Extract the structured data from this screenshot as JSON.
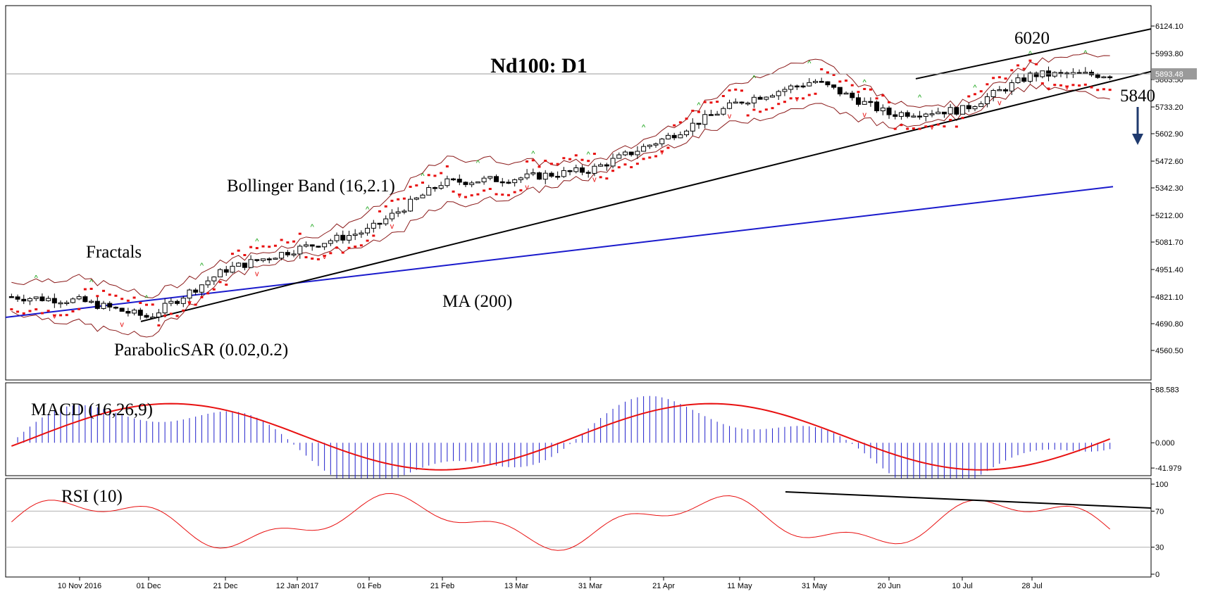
{
  "chart_data": {
    "type": "candlestick",
    "title": "Nd100: D1",
    "symbol_label": "Nd100: D1",
    "annotations": {
      "fractals": "Fractals",
      "bollinger": "Bollinger Band (16,2.1)",
      "parabolic": "ParabolicSAR (0.02,0.2)",
      "ma": "MA (200)",
      "target_up": "6020",
      "target_down": "5840"
    },
    "price_axis": {
      "ticks": [
        "6124.10",
        "5993.80",
        "5863.50",
        "5733.20",
        "5602.90",
        "5472.60",
        "5342.30",
        "5212.00",
        "5081.70",
        "4951.40",
        "4821.10",
        "4690.80",
        "4560.50"
      ],
      "current_price": "5893.48",
      "range": [
        4460,
        6180
      ]
    },
    "x_axis": {
      "labels": [
        "10 Nov 2016",
        "01 Dec",
        "21 Dec",
        "12 Jan 2017",
        "01 Feb",
        "21 Feb",
        "13 Mar",
        "31 Mar",
        "21 Apr",
        "11 May",
        "31 May",
        "20 Jun",
        "10 Jul",
        "28 Jul"
      ]
    },
    "ohlc_samples": [
      {
        "date": "10 Nov 2016",
        "close": 4800
      },
      {
        "date": "01 Dec",
        "close": 4720
      },
      {
        "date": "21 Dec",
        "close": 4950
      },
      {
        "date": "12 Jan 2017",
        "close": 5050
      },
      {
        "date": "01 Feb",
        "close": 5140
      },
      {
        "date": "21 Feb",
        "close": 5370
      },
      {
        "date": "13 Mar",
        "close": 5390
      },
      {
        "date": "31 Mar",
        "close": 5430
      },
      {
        "date": "21 Apr",
        "close": 5580
      },
      {
        "date": "11 May",
        "close": 5760
      },
      {
        "date": "31 May",
        "close": 5860
      },
      {
        "date": "20 Jun",
        "close": 5700
      },
      {
        "date": "10 Jul",
        "close": 5720
      },
      {
        "date": "28 Jul",
        "close": 5890
      }
    ],
    "ma200": {
      "start": 4720,
      "end": 5350
    },
    "macd": {
      "label": "MACD (16,26,9)",
      "ticks": [
        "88.583",
        "0.000",
        "-41.979"
      ],
      "range": [
        -50,
        95
      ]
    },
    "rsi": {
      "label": "RSI (10)",
      "ticks": [
        "100",
        "70",
        "30",
        "0"
      ],
      "range": [
        0,
        100
      ]
    }
  },
  "colors": {
    "candle_up": "#ffffff",
    "candle_down": "#000000",
    "ma": "#1a1acc",
    "bollinger": "#8b1a1a",
    "sar": "#e81010",
    "macd_hist": "#2020cc",
    "macd_signal": "#e81010",
    "rsi_line": "#e81010",
    "trend": "#000000",
    "fractal_up": "#10a010",
    "fractal_down": "#e81010",
    "arrow": "#1f3a6e"
  }
}
